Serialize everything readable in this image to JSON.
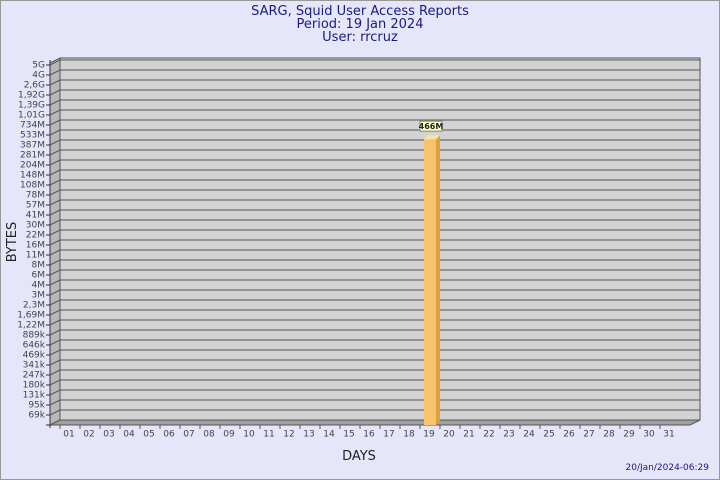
{
  "chart_data": {
    "type": "bar",
    "title": "SARG, Squid User Access Reports",
    "subtitle": [
      "Period: 19 Jan 2024",
      "User: rrcruz"
    ],
    "xlabel": "DAYS",
    "ylabel": "BYTES",
    "footer": "20/Jan/2024-06:29",
    "log_scale": true,
    "grid": true,
    "color": "#f7c46c",
    "categories": [
      "01",
      "02",
      "03",
      "04",
      "05",
      "06",
      "07",
      "08",
      "09",
      "10",
      "11",
      "12",
      "13",
      "14",
      "15",
      "16",
      "17",
      "18",
      "19",
      "20",
      "21",
      "22",
      "23",
      "24",
      "25",
      "26",
      "27",
      "28",
      "29",
      "30",
      "31"
    ],
    "values": [
      null,
      null,
      null,
      null,
      null,
      null,
      null,
      null,
      null,
      null,
      null,
      null,
      null,
      null,
      null,
      null,
      null,
      null,
      466000000,
      null,
      null,
      null,
      null,
      null,
      null,
      null,
      null,
      null,
      null,
      null,
      null
    ],
    "value_labels": [
      null,
      null,
      null,
      null,
      null,
      null,
      null,
      null,
      null,
      null,
      null,
      null,
      null,
      null,
      null,
      null,
      null,
      null,
      "466M",
      null,
      null,
      null,
      null,
      null,
      null,
      null,
      null,
      null,
      null,
      null,
      null
    ],
    "ylim": [
      69000,
      5000000000
    ],
    "yticks": [
      {
        "value": 5000000000,
        "label": "5G"
      },
      {
        "value": 4000000000,
        "label": "4G"
      },
      {
        "value": 2600000000,
        "label": "2,6G"
      },
      {
        "value": 1920000000,
        "label": "1,92G"
      },
      {
        "value": 1390000000,
        "label": "1,39G"
      },
      {
        "value": 1010000000,
        "label": "1,01G"
      },
      {
        "value": 734000000,
        "label": "734M"
      },
      {
        "value": 533000000,
        "label": "533M"
      },
      {
        "value": 387000000,
        "label": "387M"
      },
      {
        "value": 281000000,
        "label": "281M"
      },
      {
        "value": 204000000,
        "label": "204M"
      },
      {
        "value": 148000000,
        "label": "148M"
      },
      {
        "value": 108000000,
        "label": "108M"
      },
      {
        "value": 78000000,
        "label": "78M"
      },
      {
        "value": 57000000,
        "label": "57M"
      },
      {
        "value": 41000000,
        "label": "41M"
      },
      {
        "value": 30000000,
        "label": "30M"
      },
      {
        "value": 22000000,
        "label": "22M"
      },
      {
        "value": 16000000,
        "label": "16M"
      },
      {
        "value": 11000000,
        "label": "11M"
      },
      {
        "value": 8000000,
        "label": "8M"
      },
      {
        "value": 6000000,
        "label": "6M"
      },
      {
        "value": 4000000,
        "label": "4M"
      },
      {
        "value": 3000000,
        "label": "3M"
      },
      {
        "value": 2300000,
        "label": "2,3M"
      },
      {
        "value": 1690000,
        "label": "1,69M"
      },
      {
        "value": 1220000,
        "label": "1,22M"
      },
      {
        "value": 889000,
        "label": "889k"
      },
      {
        "value": 646000,
        "label": "646k"
      },
      {
        "value": 469000,
        "label": "469k"
      },
      {
        "value": 341000,
        "label": "341k"
      },
      {
        "value": 247000,
        "label": "247k"
      },
      {
        "value": 180000,
        "label": "180k"
      },
      {
        "value": 131000,
        "label": "131k"
      },
      {
        "value": 95000,
        "label": "95k"
      },
      {
        "value": 69000,
        "label": "69k"
      }
    ]
  }
}
